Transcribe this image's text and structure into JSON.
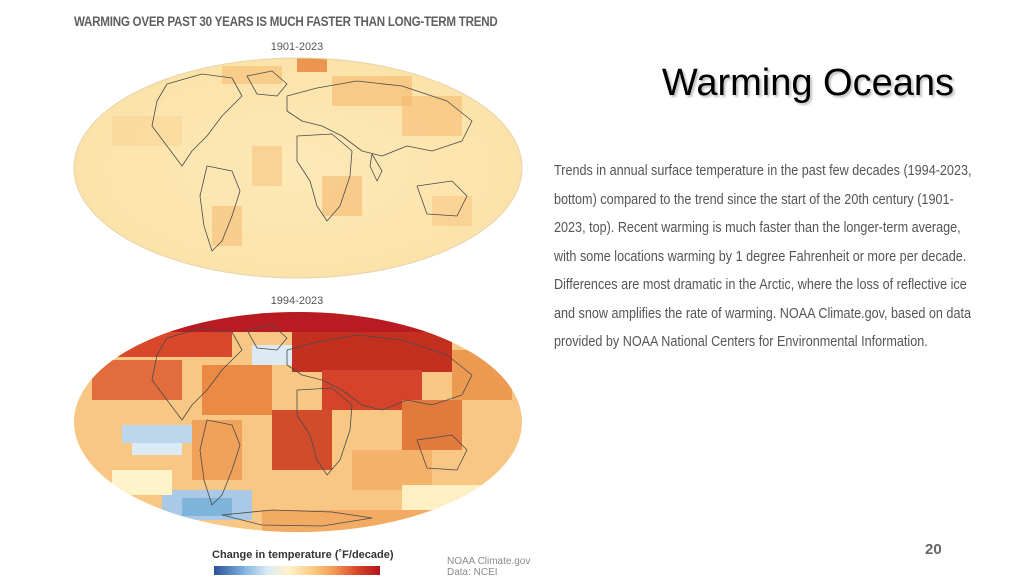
{
  "figure": {
    "title": "WARMING OVER PAST 30 YEARS IS MUCH FASTER THAN LONG-TERM TREND",
    "maps": [
      {
        "label": "1901-2023",
        "icon": "world-map-trend-1901-2023"
      },
      {
        "label": "1994-2023",
        "icon": "world-map-trend-1994-2023"
      }
    ],
    "legend": {
      "title": "Change in temperature (˚F/decade)",
      "colors": [
        "#2a4f9a",
        "#7fb4dd",
        "#dbeaf5",
        "#fff3c9",
        "#fbd08a",
        "#f39a55",
        "#d9482a",
        "#b0141d"
      ]
    },
    "credit_line1": "NOAA Climate.gov",
    "credit_line2": "Data: NCEI"
  },
  "slide": {
    "title": "Warming Oceans",
    "body": "Trends in annual surface temperature in the past few decades (1994-2023, bottom) compared to the trend since the start of the 20th century (1901-2023, top). Recent warming is much faster than the longer-term average, with some locations warming by 1 degree Fahrenheit or more per decade. Differences are most dramatic in the Arctic, where the loss of reflective ice and snow amplifies the rate of warming. NOAA Climate.gov, based on data provided by NOAA National Centers for Environmental Information.",
    "page_number": "20"
  }
}
